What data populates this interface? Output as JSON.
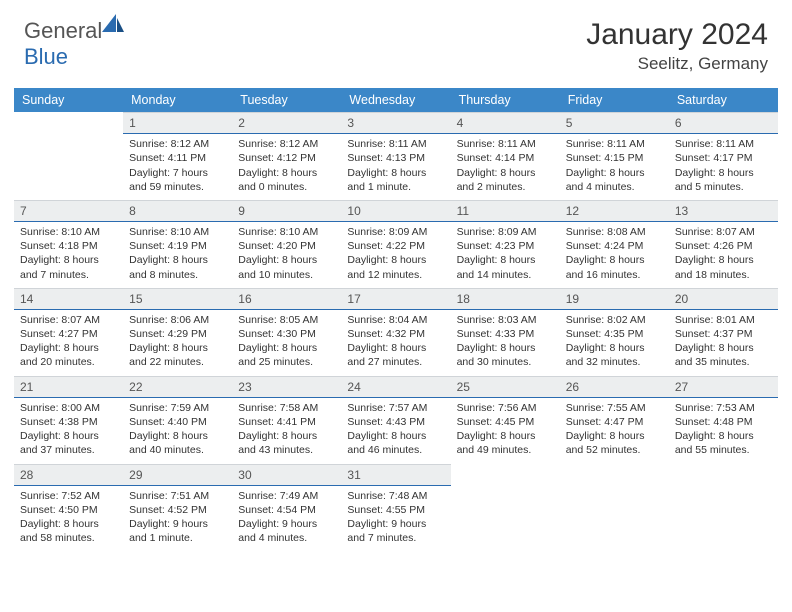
{
  "brand": {
    "part1": "General",
    "part2": "Blue"
  },
  "colors": {
    "header_bg": "#3b87c8",
    "header_text": "#ffffff",
    "daynum_bg": "#eceeef",
    "daynum_border": "#2a6bb0",
    "text": "#333333",
    "brand_gray": "#555555",
    "brand_blue": "#2a6bb0",
    "page_bg": "#ffffff"
  },
  "typography": {
    "title_size_pt": 22,
    "location_size_pt": 13,
    "dayheader_size_pt": 9,
    "cell_size_pt": 8
  },
  "title": "January 2024",
  "location": "Seelitz, Germany",
  "day_names": [
    "Sunday",
    "Monday",
    "Tuesday",
    "Wednesday",
    "Thursday",
    "Friday",
    "Saturday"
  ],
  "weeks": [
    [
      {
        "n": "",
        "sr": "",
        "ss": "",
        "dl": ""
      },
      {
        "n": "1",
        "sr": "Sunrise: 8:12 AM",
        "ss": "Sunset: 4:11 PM",
        "dl": "Daylight: 7 hours and 59 minutes."
      },
      {
        "n": "2",
        "sr": "Sunrise: 8:12 AM",
        "ss": "Sunset: 4:12 PM",
        "dl": "Daylight: 8 hours and 0 minutes."
      },
      {
        "n": "3",
        "sr": "Sunrise: 8:11 AM",
        "ss": "Sunset: 4:13 PM",
        "dl": "Daylight: 8 hours and 1 minute."
      },
      {
        "n": "4",
        "sr": "Sunrise: 8:11 AM",
        "ss": "Sunset: 4:14 PM",
        "dl": "Daylight: 8 hours and 2 minutes."
      },
      {
        "n": "5",
        "sr": "Sunrise: 8:11 AM",
        "ss": "Sunset: 4:15 PM",
        "dl": "Daylight: 8 hours and 4 minutes."
      },
      {
        "n": "6",
        "sr": "Sunrise: 8:11 AM",
        "ss": "Sunset: 4:17 PM",
        "dl": "Daylight: 8 hours and 5 minutes."
      }
    ],
    [
      {
        "n": "7",
        "sr": "Sunrise: 8:10 AM",
        "ss": "Sunset: 4:18 PM",
        "dl": "Daylight: 8 hours and 7 minutes."
      },
      {
        "n": "8",
        "sr": "Sunrise: 8:10 AM",
        "ss": "Sunset: 4:19 PM",
        "dl": "Daylight: 8 hours and 8 minutes."
      },
      {
        "n": "9",
        "sr": "Sunrise: 8:10 AM",
        "ss": "Sunset: 4:20 PM",
        "dl": "Daylight: 8 hours and 10 minutes."
      },
      {
        "n": "10",
        "sr": "Sunrise: 8:09 AM",
        "ss": "Sunset: 4:22 PM",
        "dl": "Daylight: 8 hours and 12 minutes."
      },
      {
        "n": "11",
        "sr": "Sunrise: 8:09 AM",
        "ss": "Sunset: 4:23 PM",
        "dl": "Daylight: 8 hours and 14 minutes."
      },
      {
        "n": "12",
        "sr": "Sunrise: 8:08 AM",
        "ss": "Sunset: 4:24 PM",
        "dl": "Daylight: 8 hours and 16 minutes."
      },
      {
        "n": "13",
        "sr": "Sunrise: 8:07 AM",
        "ss": "Sunset: 4:26 PM",
        "dl": "Daylight: 8 hours and 18 minutes."
      }
    ],
    [
      {
        "n": "14",
        "sr": "Sunrise: 8:07 AM",
        "ss": "Sunset: 4:27 PM",
        "dl": "Daylight: 8 hours and 20 minutes."
      },
      {
        "n": "15",
        "sr": "Sunrise: 8:06 AM",
        "ss": "Sunset: 4:29 PM",
        "dl": "Daylight: 8 hours and 22 minutes."
      },
      {
        "n": "16",
        "sr": "Sunrise: 8:05 AM",
        "ss": "Sunset: 4:30 PM",
        "dl": "Daylight: 8 hours and 25 minutes."
      },
      {
        "n": "17",
        "sr": "Sunrise: 8:04 AM",
        "ss": "Sunset: 4:32 PM",
        "dl": "Daylight: 8 hours and 27 minutes."
      },
      {
        "n": "18",
        "sr": "Sunrise: 8:03 AM",
        "ss": "Sunset: 4:33 PM",
        "dl": "Daylight: 8 hours and 30 minutes."
      },
      {
        "n": "19",
        "sr": "Sunrise: 8:02 AM",
        "ss": "Sunset: 4:35 PM",
        "dl": "Daylight: 8 hours and 32 minutes."
      },
      {
        "n": "20",
        "sr": "Sunrise: 8:01 AM",
        "ss": "Sunset: 4:37 PM",
        "dl": "Daylight: 8 hours and 35 minutes."
      }
    ],
    [
      {
        "n": "21",
        "sr": "Sunrise: 8:00 AM",
        "ss": "Sunset: 4:38 PM",
        "dl": "Daylight: 8 hours and 37 minutes."
      },
      {
        "n": "22",
        "sr": "Sunrise: 7:59 AM",
        "ss": "Sunset: 4:40 PM",
        "dl": "Daylight: 8 hours and 40 minutes."
      },
      {
        "n": "23",
        "sr": "Sunrise: 7:58 AM",
        "ss": "Sunset: 4:41 PM",
        "dl": "Daylight: 8 hours and 43 minutes."
      },
      {
        "n": "24",
        "sr": "Sunrise: 7:57 AM",
        "ss": "Sunset: 4:43 PM",
        "dl": "Daylight: 8 hours and 46 minutes."
      },
      {
        "n": "25",
        "sr": "Sunrise: 7:56 AM",
        "ss": "Sunset: 4:45 PM",
        "dl": "Daylight: 8 hours and 49 minutes."
      },
      {
        "n": "26",
        "sr": "Sunrise: 7:55 AM",
        "ss": "Sunset: 4:47 PM",
        "dl": "Daylight: 8 hours and 52 minutes."
      },
      {
        "n": "27",
        "sr": "Sunrise: 7:53 AM",
        "ss": "Sunset: 4:48 PM",
        "dl": "Daylight: 8 hours and 55 minutes."
      }
    ],
    [
      {
        "n": "28",
        "sr": "Sunrise: 7:52 AM",
        "ss": "Sunset: 4:50 PM",
        "dl": "Daylight: 8 hours and 58 minutes."
      },
      {
        "n": "29",
        "sr": "Sunrise: 7:51 AM",
        "ss": "Sunset: 4:52 PM",
        "dl": "Daylight: 9 hours and 1 minute."
      },
      {
        "n": "30",
        "sr": "Sunrise: 7:49 AM",
        "ss": "Sunset: 4:54 PM",
        "dl": "Daylight: 9 hours and 4 minutes."
      },
      {
        "n": "31",
        "sr": "Sunrise: 7:48 AM",
        "ss": "Sunset: 4:55 PM",
        "dl": "Daylight: 9 hours and 7 minutes."
      },
      {
        "n": "",
        "sr": "",
        "ss": "",
        "dl": ""
      },
      {
        "n": "",
        "sr": "",
        "ss": "",
        "dl": ""
      },
      {
        "n": "",
        "sr": "",
        "ss": "",
        "dl": ""
      }
    ]
  ]
}
